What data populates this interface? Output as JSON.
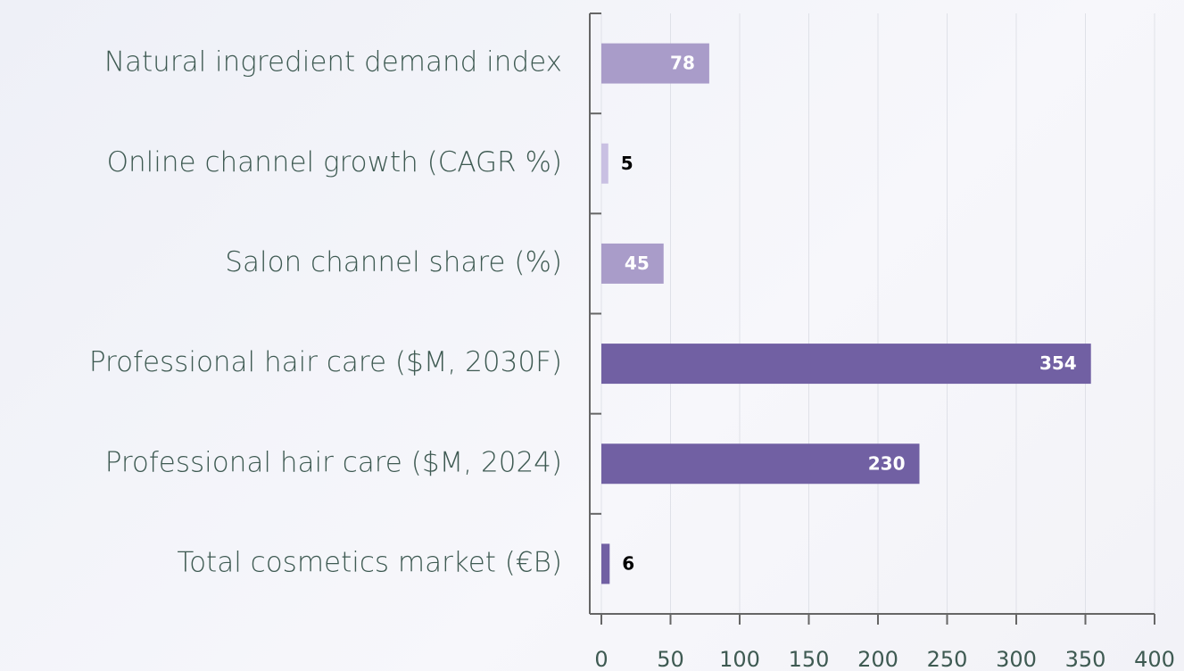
{
  "chart_data": {
    "type": "barh",
    "categories": [
      "Natural ingredient demand index",
      "Online channel growth (CAGR %)",
      "Salon channel share (%)",
      "Professional hair care ($M, 2030F)",
      "Professional hair care ($M, 2024)",
      "Total cosmetics market (€B)"
    ],
    "values": [
      78,
      5,
      45,
      354,
      230,
      6
    ],
    "colors": [
      "#a99cc9",
      "#c9c0e2",
      "#a99cc9",
      "#7160a3",
      "#7160a3",
      "#7160a3"
    ],
    "xlim": [
      0,
      400
    ],
    "xticks": [
      0,
      50,
      100,
      150,
      200,
      250,
      300,
      350,
      400
    ],
    "grid": true
  }
}
